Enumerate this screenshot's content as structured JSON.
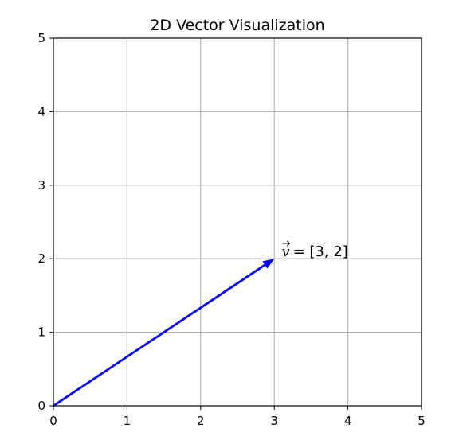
{
  "chart_data": {
    "type": "vector",
    "title": "2D Vector Visualization",
    "xlabel": "",
    "ylabel": "",
    "xlim": [
      0,
      5
    ],
    "ylim": [
      0,
      5
    ],
    "xticks": [
      0,
      1,
      2,
      3,
      4,
      5
    ],
    "yticks": [
      0,
      1,
      2,
      3,
      4,
      5
    ],
    "grid": true,
    "vectors": [
      {
        "origin": [
          0,
          0
        ],
        "components": [
          3,
          2
        ],
        "color": "#0000ff",
        "label_symbol": "v",
        "label_text": "= [3, 2]",
        "label_position": [
          3.1,
          2.1
        ]
      }
    ],
    "colors": {
      "grid": "#b0b0b0",
      "axes": "#000000"
    }
  }
}
